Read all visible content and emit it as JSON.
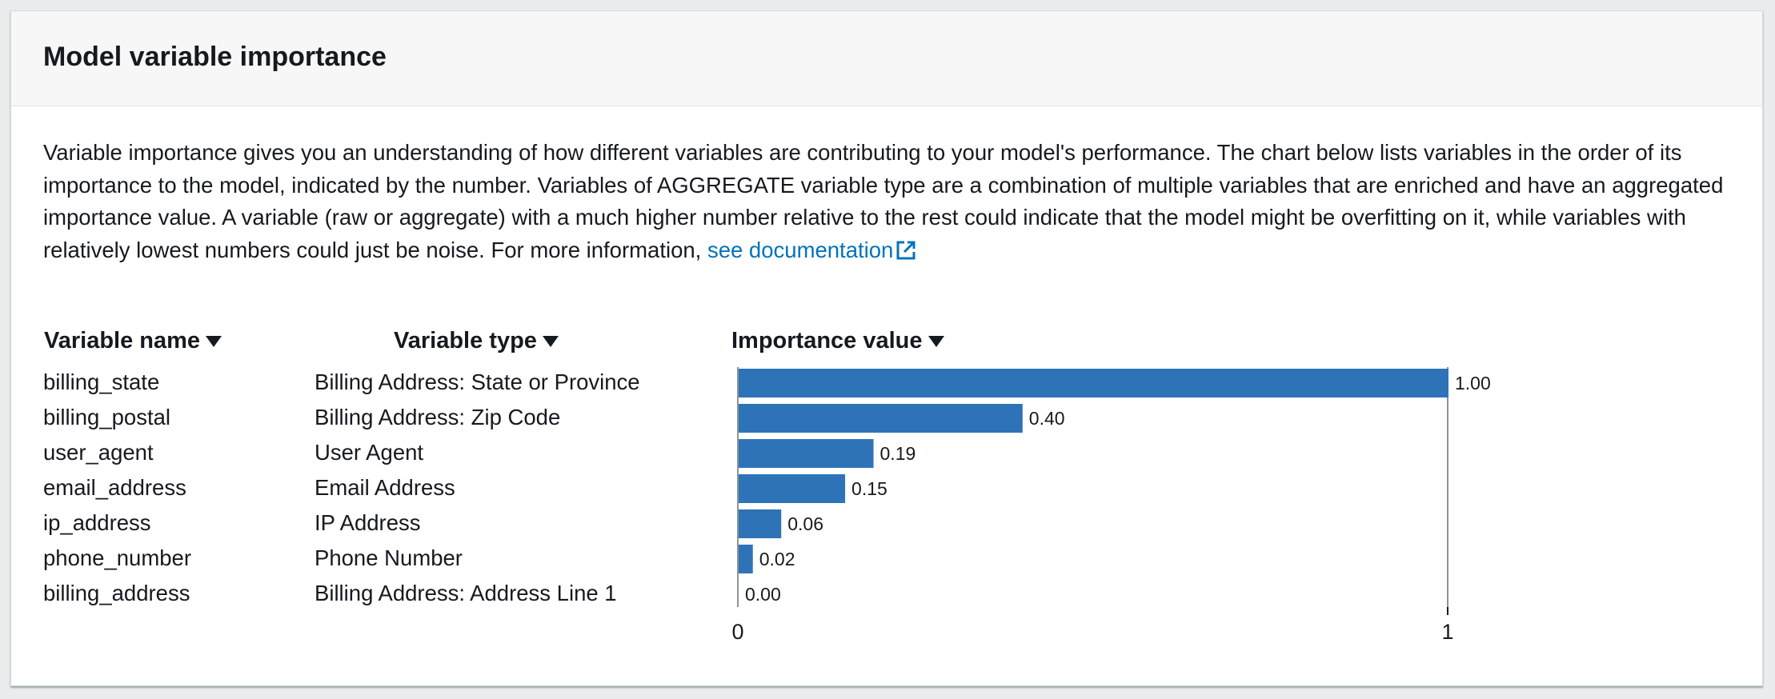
{
  "panel": {
    "title": "Model variable importance",
    "description": "Variable importance gives you an understanding of how different variables are contributing to your model's performance. The chart below lists variables in the order of its importance to the model, indicated by the number. Variables of AGGREGATE variable type are a combination of multiple variables that are enriched and have an aggregated importance value. A variable (raw or aggregate) with a much higher number relative to the rest could indicate that the model might be overfitting on it, while variables with relatively lowest numbers could just be noise. For more information, ",
    "doc_link_label": "see documentation",
    "doc_link_icon": "external-link-icon"
  },
  "table": {
    "columns": [
      {
        "label": "Variable name",
        "icon": "sort-caret-down-icon"
      },
      {
        "label": "Variable type",
        "icon": "sort-caret-down-icon"
      },
      {
        "label": "Importance value",
        "icon": "sort-caret-down-icon"
      }
    ],
    "rows": [
      {
        "name": "billing_state",
        "type": "Billing Address: State or Province"
      },
      {
        "name": "billing_postal",
        "type": "Billing Address: Zip Code"
      },
      {
        "name": "user_agent",
        "type": "User Agent"
      },
      {
        "name": "email_address",
        "type": "Email Address"
      },
      {
        "name": "ip_address",
        "type": "IP Address"
      },
      {
        "name": "phone_number",
        "type": "Phone Number"
      },
      {
        "name": "billing_address",
        "type": "Billing Address: Address Line 1"
      }
    ]
  },
  "chart_data": {
    "type": "bar",
    "orientation": "horizontal",
    "categories": [
      "billing_state",
      "billing_postal",
      "user_agent",
      "email_address",
      "ip_address",
      "phone_number",
      "billing_address"
    ],
    "values": [
      1.0,
      0.4,
      0.19,
      0.15,
      0.06,
      0.02,
      0.0
    ],
    "value_labels": [
      "1.00",
      "0.40",
      "0.19",
      "0.15",
      "0.06",
      "0.02",
      "0.00"
    ],
    "xlim": [
      0,
      1
    ],
    "x_ticks": [
      "0",
      "1"
    ],
    "bar_color": "#2e73b8",
    "grid": false
  },
  "colors": {
    "link": "#0073bb",
    "bar": "#2e73b8",
    "text": "#16191f"
  }
}
